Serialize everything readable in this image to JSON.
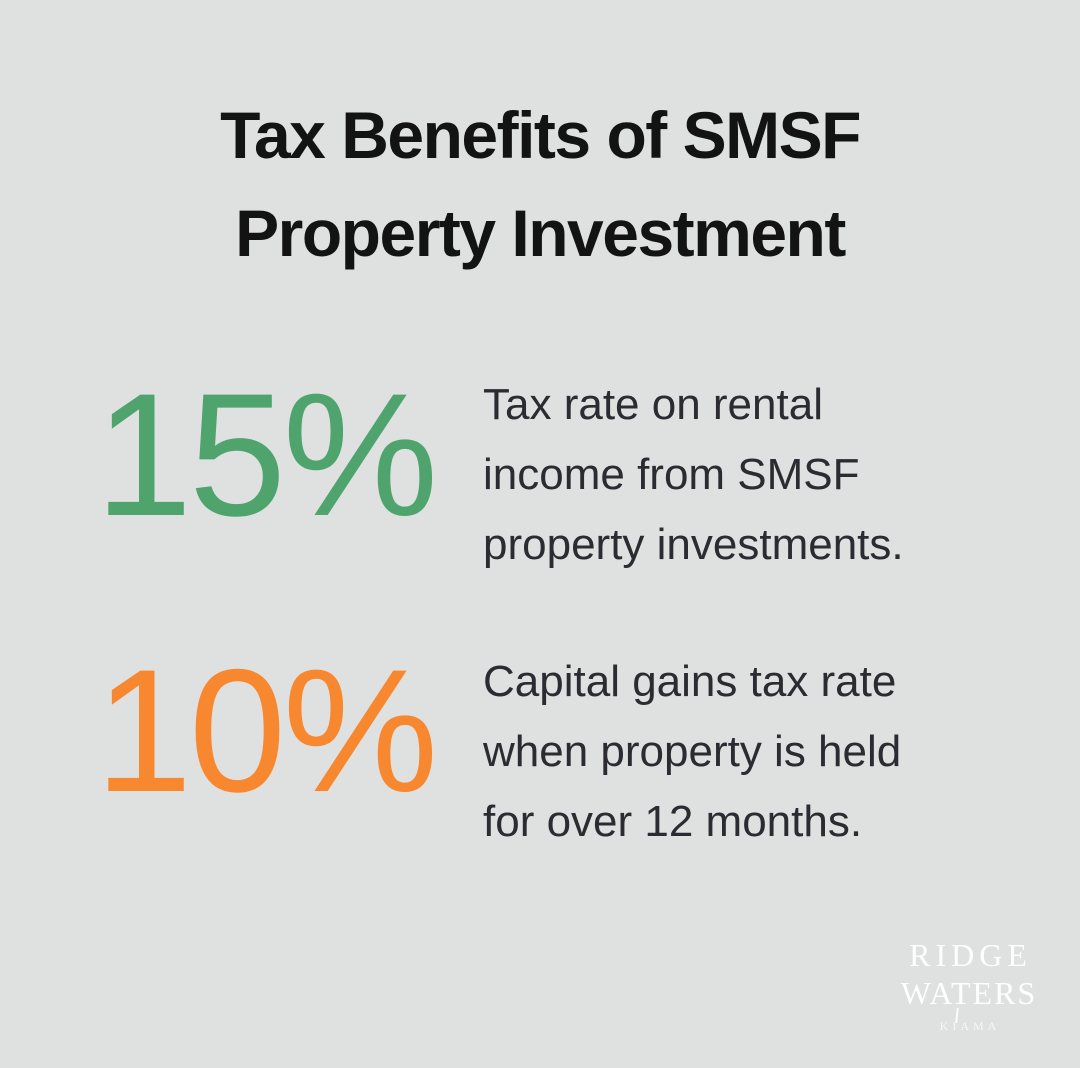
{
  "page": {
    "background_color": "#dfe0e0"
  },
  "title": {
    "line1": "Tax Benefits of SMSF",
    "line2": "Property Investment",
    "color": "#131313"
  },
  "stats": [
    {
      "value": "15%",
      "color": "#4fa46d",
      "lines": [
        "Tax rate on rental",
        "income from SMSF",
        "property investments."
      ],
      "description": "Tax rate on rental income from SMSF property investments."
    },
    {
      "value": "10%",
      "color": "#f8882f",
      "lines": [
        "Capital gains tax rate",
        "when property is held",
        "for over 12 months."
      ],
      "description": "Capital gains tax rate when property is held for over 12 months."
    }
  ],
  "logo": {
    "line1": "RIDGE",
    "line2": "WATERS",
    "tagline": "KIAMA",
    "color": "#ffffff"
  }
}
